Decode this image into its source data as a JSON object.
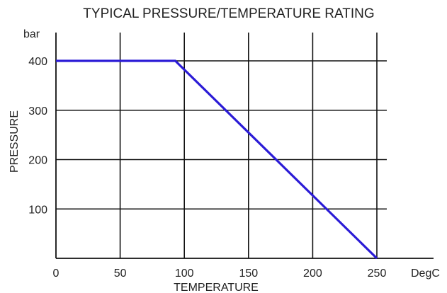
{
  "chart_data": {
    "type": "line",
    "title": "TYPICAL PRESSURE/TEMPERATURE RATING",
    "xlabel": "TEMPERATURE",
    "ylabel": "PRESSURE",
    "x_unit": "DegC",
    "y_unit": "bar",
    "xlim": [
      0,
      260
    ],
    "ylim": [
      0,
      400
    ],
    "grid": true,
    "x_ticks": [
      0,
      50,
      100,
      150,
      200,
      250
    ],
    "y_ticks": [
      100,
      200,
      300,
      400
    ],
    "x_tick_labels": [
      "0",
      "50",
      "100",
      "150",
      "200",
      "250"
    ],
    "y_tick_labels": [
      "100",
      "200",
      "300",
      "400"
    ],
    "series": [
      {
        "x": [
          0,
          93,
          250
        ],
        "y": [
          400,
          400,
          0
        ],
        "color": "#2b1bd6"
      }
    ]
  }
}
